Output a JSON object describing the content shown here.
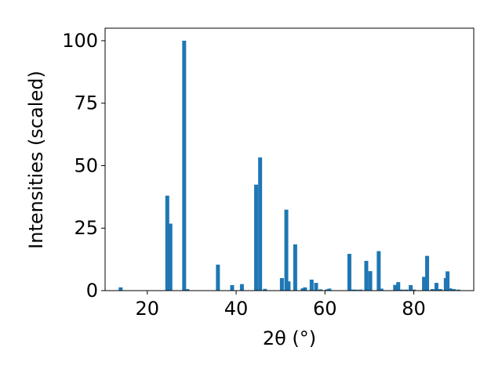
{
  "chart_data": {
    "type": "bar",
    "title": "",
    "xlabel": "2θ (°)",
    "ylabel": "Intensities (scaled)",
    "xlim": [
      10.5,
      93.5
    ],
    "ylim": [
      0,
      105
    ],
    "xticks": [
      20,
      40,
      60,
      80
    ],
    "yticks": [
      0,
      25,
      50,
      75,
      100
    ],
    "grid": false,
    "bar_color": "#1f77b4",
    "x": [
      14.0,
      24.5,
      25.2,
      28.3,
      29.0,
      35.9,
      39.1,
      41.3,
      44.5,
      45.4,
      46.5,
      50.3,
      51.3,
      51.8,
      53.3,
      55.0,
      55.5,
      57.0,
      58.0,
      59.0,
      60.5,
      61.0,
      65.5,
      66.2,
      67.0,
      68.0,
      69.3,
      70.2,
      72.1,
      72.7,
      75.8,
      76.5,
      77.3,
      78.3,
      79.3,
      80.0,
      82.3,
      83.0,
      84.2,
      85.1,
      86.0,
      87.2,
      87.6,
      88.2,
      89.0,
      90.0
    ],
    "values": [
      1.3,
      38.0,
      26.8,
      100.0,
      0.6,
      10.4,
      2.2,
      2.6,
      42.4,
      53.3,
      0.7,
      5.0,
      32.4,
      3.7,
      18.5,
      0.9,
      1.3,
      4.4,
      3.1,
      0.5,
      0.5,
      0.8,
      14.7,
      0.4,
      0.4,
      0.4,
      11.9,
      7.8,
      15.8,
      0.8,
      2.3,
      3.4,
      0.4,
      0.4,
      2.2,
      0.4,
      5.5,
      13.9,
      0.6,
      3.1,
      0.6,
      5.0,
      7.7,
      0.9,
      0.6,
      0.4
    ]
  }
}
